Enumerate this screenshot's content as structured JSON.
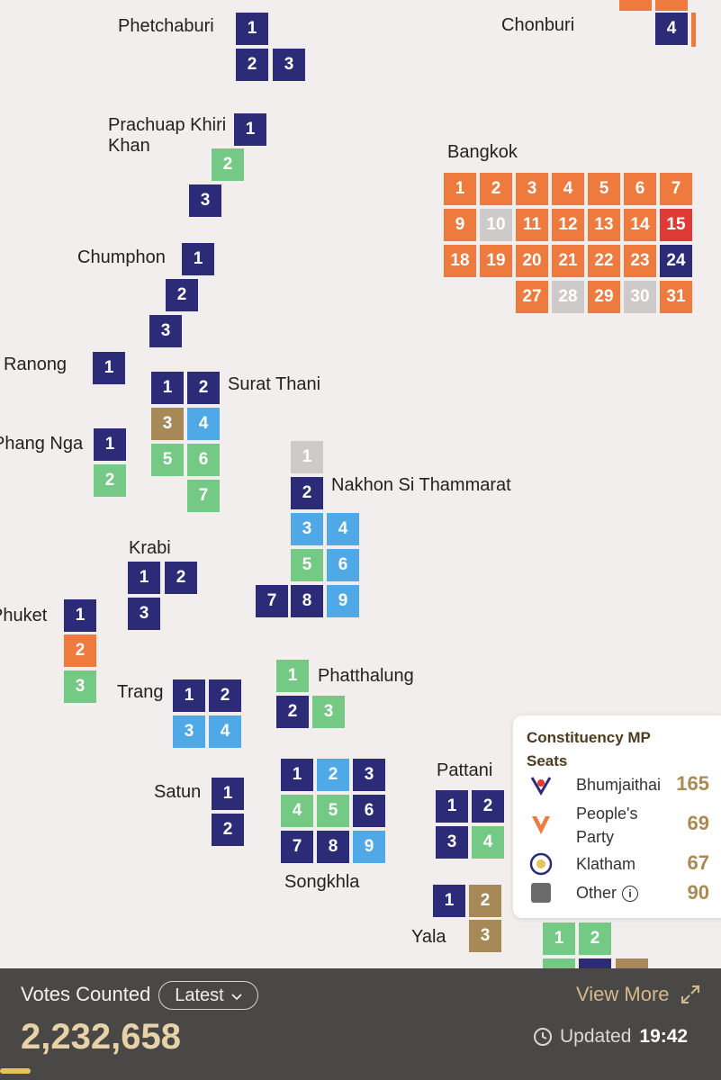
{
  "provinces": {
    "phetchaburi": "Phetchaburi",
    "chonburi": "Chonburi",
    "prachuap": "Prachuap Khiri Khan",
    "bangkok": "Bangkok",
    "chumphon": "Chumphon",
    "ranong": "Ranong",
    "surat_thani": "Surat Thani",
    "phang_nga": "Phang Nga",
    "nakhon": "Nakhon Si Thammarat",
    "krabi": "Krabi",
    "phuket": "Phuket",
    "trang": "Trang",
    "phatthalung": "Phatthalung",
    "satun": "Satun",
    "songkhla": "Songkhla",
    "pattani": "Pattani",
    "yala": "Yala"
  },
  "colors": {
    "bhumjaithai": "#2b2b78",
    "people": "#ee7a3e",
    "klatham": "#4fa9e7",
    "green": "#74c984",
    "brown": "#a68956",
    "grey": "#cdcbca",
    "red": "#e03a35",
    "other": "#6b6b6b"
  },
  "districts": {
    "phetchaburi": [
      "1",
      "2",
      "3"
    ],
    "chonburi": [
      "4"
    ],
    "prachuap": [
      "1",
      "2",
      "3"
    ],
    "bangkok": [
      "1",
      "2",
      "3",
      "4",
      "5",
      "6",
      "7",
      "9",
      "10",
      "11",
      "12",
      "13",
      "14",
      "15",
      "18",
      "19",
      "20",
      "21",
      "22",
      "23",
      "24",
      "27",
      "28",
      "29",
      "30",
      "31"
    ],
    "chumphon": [
      "1",
      "2",
      "3"
    ],
    "ranong": [
      "1"
    ],
    "surat_thani": [
      "1",
      "2",
      "3",
      "4",
      "5",
      "6",
      "7"
    ],
    "phang_nga": [
      "1",
      "2"
    ],
    "nakhon": [
      "1",
      "2",
      "3",
      "4",
      "5",
      "6",
      "7",
      "8",
      "9"
    ],
    "krabi": [
      "1",
      "2",
      "3"
    ],
    "phuket": [
      "1",
      "2",
      "3"
    ],
    "trang": [
      "1",
      "2",
      "3",
      "4"
    ],
    "phatthalung": [
      "1",
      "2",
      "3"
    ],
    "satun": [
      "1",
      "2"
    ],
    "songkhla": [
      "1",
      "2",
      "3",
      "4",
      "5",
      "6",
      "7",
      "8",
      "9"
    ],
    "pattani": [
      "1",
      "2",
      "3",
      "4"
    ],
    "yala": [
      "1",
      "2",
      "3"
    ],
    "narathiwat": [
      "1",
      "2"
    ]
  },
  "legend": {
    "title": "Constituency MP Seats",
    "items": [
      {
        "name": "Bhumjaithai",
        "value": "165",
        "icon": "bhumjaithai-logo-icon"
      },
      {
        "name": "People's Party",
        "value": "69",
        "icon": "peoples-party-logo-icon"
      },
      {
        "name": "Klatham",
        "value": "67",
        "icon": "klatham-logo-icon"
      },
      {
        "name": "Other",
        "value": "90",
        "icon": "other-square-icon"
      }
    ]
  },
  "footer": {
    "votes_label": "Votes Counted",
    "latest_label": "Latest",
    "view_more": "View More",
    "votes_count": "2,232,658",
    "updated_label": "Updated",
    "updated_time": "19:42"
  }
}
